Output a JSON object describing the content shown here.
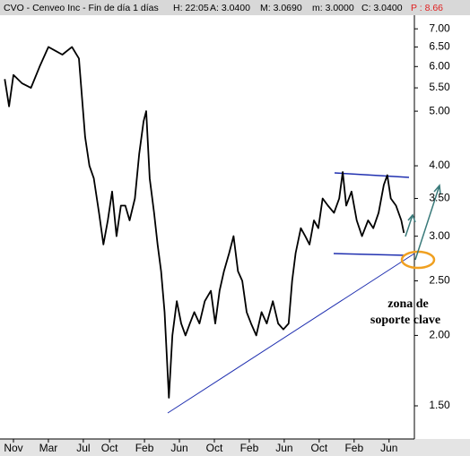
{
  "chart_data": {
    "type": "line",
    "header": [
      "CVO - Cenveo Inc - Fin de día 1 días",
      "H: 22:05",
      "A: 3.0400",
      "M: 3.0690",
      "m: 3.0000",
      "C: 3.0400",
      "P : 8.66"
    ],
    "annotations": [
      "zona de",
      "soporte clave"
    ],
    "log_scale": true,
    "xlim": [
      -1.54,
      45.9
    ],
    "xticks": [
      {
        "value": 0,
        "label": "Nov"
      },
      {
        "value": 4,
        "label": "Mar"
      },
      {
        "value": 8,
        "label": "Jul"
      },
      {
        "value": 11,
        "label": "Oct"
      },
      {
        "value": 15,
        "label": "Feb"
      },
      {
        "value": 19,
        "label": "Jun"
      },
      {
        "value": 23,
        "label": "Oct"
      },
      {
        "value": 27,
        "label": "Feb"
      },
      {
        "value": 31,
        "label": "Jun"
      },
      {
        "value": 35,
        "label": "Oct"
      },
      {
        "value": 39,
        "label": "Feb"
      },
      {
        "value": 43,
        "label": "Jun"
      }
    ],
    "ylim": [
      1.31,
      7.4
    ],
    "yticks": [
      {
        "value": 7,
        "label": "7.00"
      },
      {
        "value": 6.5,
        "label": "6.50"
      },
      {
        "value": 6,
        "label": "6.00"
      },
      {
        "value": 5.5,
        "label": "5.50"
      },
      {
        "value": 5,
        "label": "5.00"
      },
      {
        "value": 4,
        "label": "4.00"
      },
      {
        "value": 3.5,
        "label": "3.50"
      },
      {
        "value": 3,
        "label": "3.00"
      },
      {
        "value": 2.5,
        "label": "2.50"
      },
      {
        "value": 2,
        "label": "2.00"
      },
      {
        "value": 1.5,
        "label": "1.50"
      }
    ],
    "series": [
      {
        "color": "#000000",
        "x": [
          -1,
          -0.5,
          0,
          1,
          2,
          3,
          4,
          4.8,
          5.6,
          6.7,
          7.5,
          8.2,
          8.7,
          9.2,
          9.8,
          10.3,
          10.8,
          11.3,
          11.8,
          12.3,
          12.8,
          13.3,
          13.9,
          14.4,
          14.9,
          15.2,
          15.6,
          16.1,
          16.5,
          16.9,
          17.3,
          17.8,
          18.2,
          18.7,
          19.2,
          19.7,
          20.2,
          20.7,
          21.3,
          21.9,
          22.6,
          23.1,
          23.6,
          24.1,
          24.7,
          25.2,
          25.7,
          26.2,
          26.7,
          27.2,
          27.8,
          28.4,
          29.0,
          29.7,
          30.3,
          30.9,
          31.5,
          31.9,
          32.3,
          32.9,
          33.4,
          33.9,
          34.4,
          34.9,
          35.4,
          36.0,
          36.7,
          37.3,
          37.7,
          38.1,
          38.7,
          39.3,
          39.9,
          40.6,
          41.2,
          41.8,
          42.4,
          42.8,
          43.2,
          43.8,
          44.4,
          44.7
        ],
        "values": [
          5.7,
          5.1,
          5.8,
          5.6,
          5.5,
          6.0,
          6.5,
          6.4,
          6.3,
          6.5,
          6.2,
          4.5,
          4.0,
          3.8,
          3.3,
          2.9,
          3.2,
          3.6,
          3.0,
          3.4,
          3.4,
          3.2,
          3.5,
          4.2,
          4.8,
          5.0,
          3.8,
          3.3,
          2.9,
          2.6,
          2.2,
          1.55,
          2.0,
          2.3,
          2.1,
          2.0,
          2.1,
          2.2,
          2.1,
          2.3,
          2.4,
          2.1,
          2.4,
          2.6,
          2.8,
          3.0,
          2.6,
          2.5,
          2.2,
          2.1,
          2.0,
          2.2,
          2.1,
          2.3,
          2.1,
          2.05,
          2.1,
          2.5,
          2.8,
          3.1,
          3.0,
          2.9,
          3.2,
          3.1,
          3.5,
          3.4,
          3.3,
          3.5,
          3.9,
          3.4,
          3.6,
          3.2,
          3.0,
          3.2,
          3.1,
          3.3,
          3.7,
          3.85,
          3.5,
          3.4,
          3.2,
          3.04
        ]
      }
    ]
  }
}
